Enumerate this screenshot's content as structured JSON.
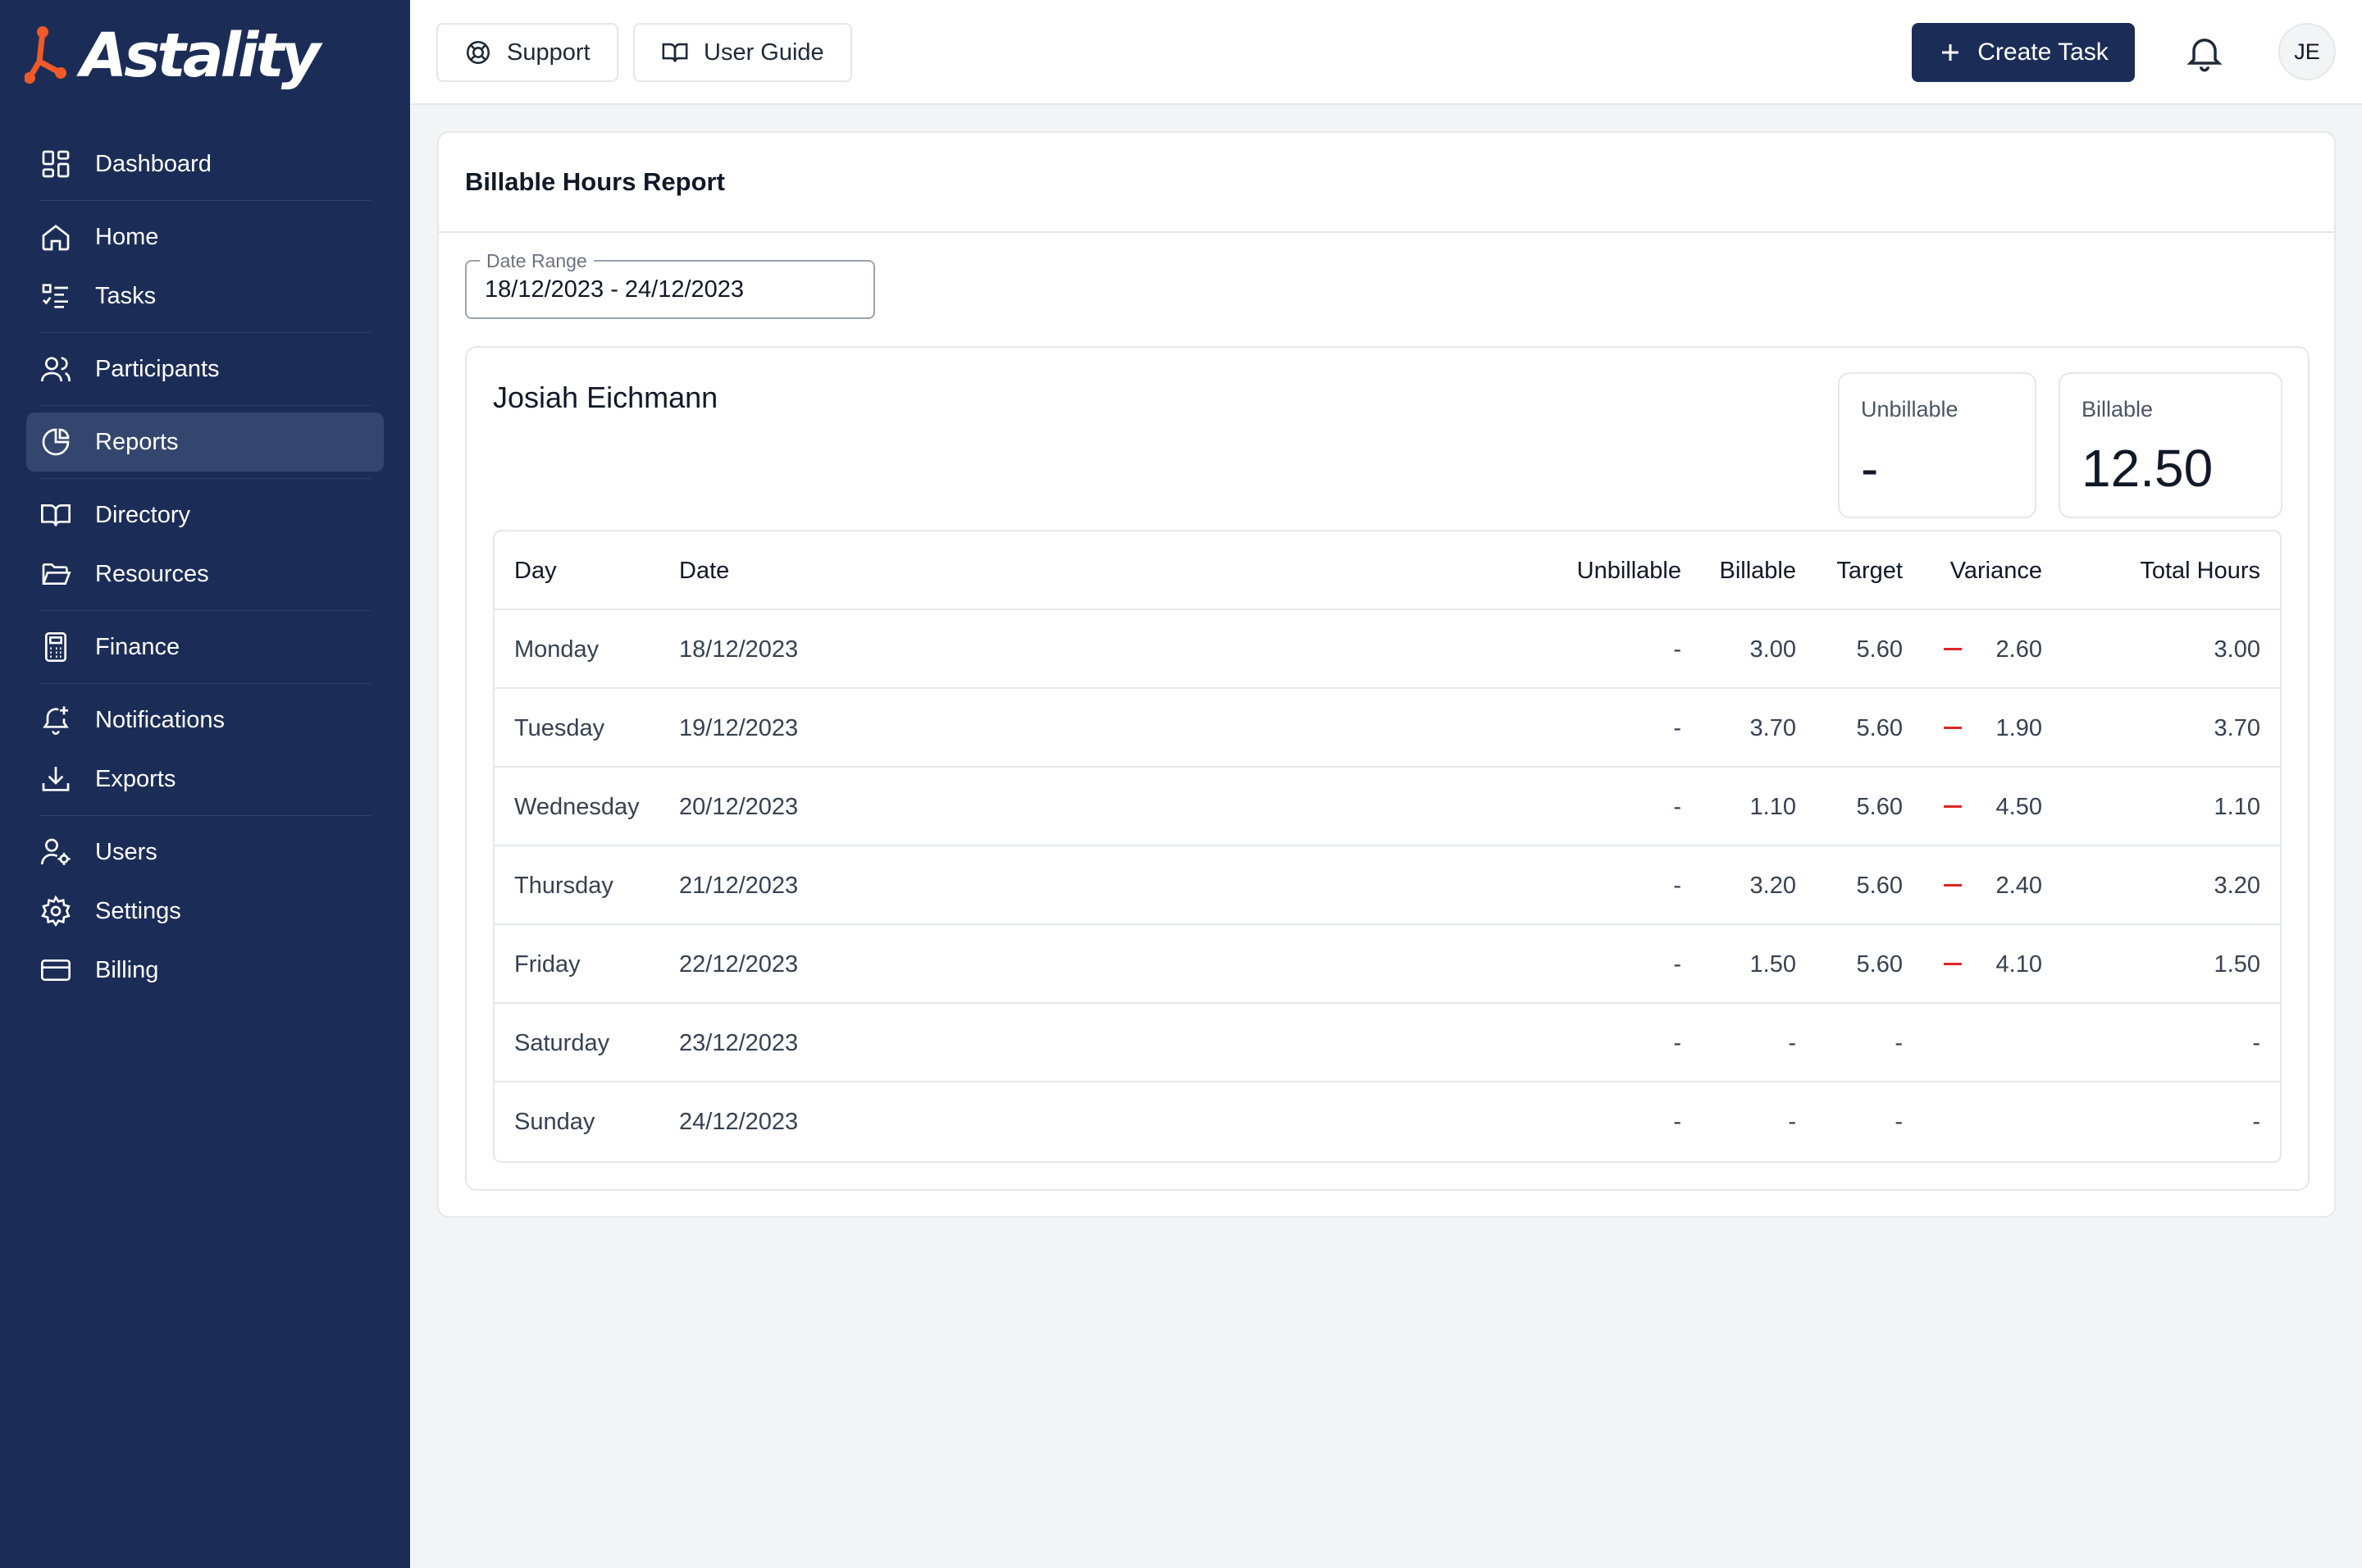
{
  "brand": {
    "name": "Astality"
  },
  "sidebar": {
    "items": [
      {
        "label": "Dashboard",
        "icon": "dashboard-icon"
      },
      {
        "label": "Home",
        "icon": "home-icon"
      },
      {
        "label": "Tasks",
        "icon": "tasks-icon"
      },
      {
        "label": "Participants",
        "icon": "participants-icon"
      },
      {
        "label": "Reports",
        "icon": "reports-icon",
        "active": true
      },
      {
        "label": "Directory",
        "icon": "directory-icon"
      },
      {
        "label": "Resources",
        "icon": "folder-icon"
      },
      {
        "label": "Finance",
        "icon": "calculator-icon"
      },
      {
        "label": "Notifications",
        "icon": "bell-plus-icon"
      },
      {
        "label": "Exports",
        "icon": "download-icon"
      },
      {
        "label": "Users",
        "icon": "user-gear-icon"
      },
      {
        "label": "Settings",
        "icon": "gear-icon"
      },
      {
        "label": "Billing",
        "icon": "credit-card-icon"
      }
    ]
  },
  "topbar": {
    "support_label": "Support",
    "guide_label": "User Guide",
    "create_label": "Create Task",
    "avatar_initials": "JE"
  },
  "report": {
    "title": "Billable Hours Report",
    "date_range_label": "Date Range",
    "date_range_value": "18/12/2023 - 24/12/2023",
    "person_name": "Josiah Eichmann",
    "unbillable_label": "Unbillable",
    "unbillable_value": "-",
    "billable_label": "Billable",
    "billable_value": "12.50",
    "columns": [
      "Day",
      "Date",
      "Unbillable",
      "Billable",
      "Target",
      "Variance",
      "Total Hours"
    ],
    "rows": [
      {
        "day": "Monday",
        "date": "18/12/2023",
        "unbillable": "-",
        "billable": "3.00",
        "target": "5.60",
        "variance": "2.60",
        "negative": true,
        "total": "3.00"
      },
      {
        "day": "Tuesday",
        "date": "19/12/2023",
        "unbillable": "-",
        "billable": "3.70",
        "target": "5.60",
        "variance": "1.90",
        "negative": true,
        "total": "3.70"
      },
      {
        "day": "Wednesday",
        "date": "20/12/2023",
        "unbillable": "-",
        "billable": "1.10",
        "target": "5.60",
        "variance": "4.50",
        "negative": true,
        "total": "1.10"
      },
      {
        "day": "Thursday",
        "date": "21/12/2023",
        "unbillable": "-",
        "billable": "3.20",
        "target": "5.60",
        "variance": "2.40",
        "negative": true,
        "total": "3.20"
      },
      {
        "day": "Friday",
        "date": "22/12/2023",
        "unbillable": "-",
        "billable": "1.50",
        "target": "5.60",
        "variance": "4.10",
        "negative": true,
        "total": "1.50"
      },
      {
        "day": "Saturday",
        "date": "23/12/2023",
        "unbillable": "-",
        "billable": "-",
        "target": "-",
        "variance": "",
        "negative": false,
        "total": "-"
      },
      {
        "day": "Sunday",
        "date": "24/12/2023",
        "unbillable": "-",
        "billable": "-",
        "target": "-",
        "variance": "",
        "negative": false,
        "total": "-"
      }
    ]
  },
  "colors": {
    "sidebar": "#1b2d57",
    "active_nav": "#34466e",
    "accent_orange": "#f05a28",
    "negative": "#dc2626"
  }
}
